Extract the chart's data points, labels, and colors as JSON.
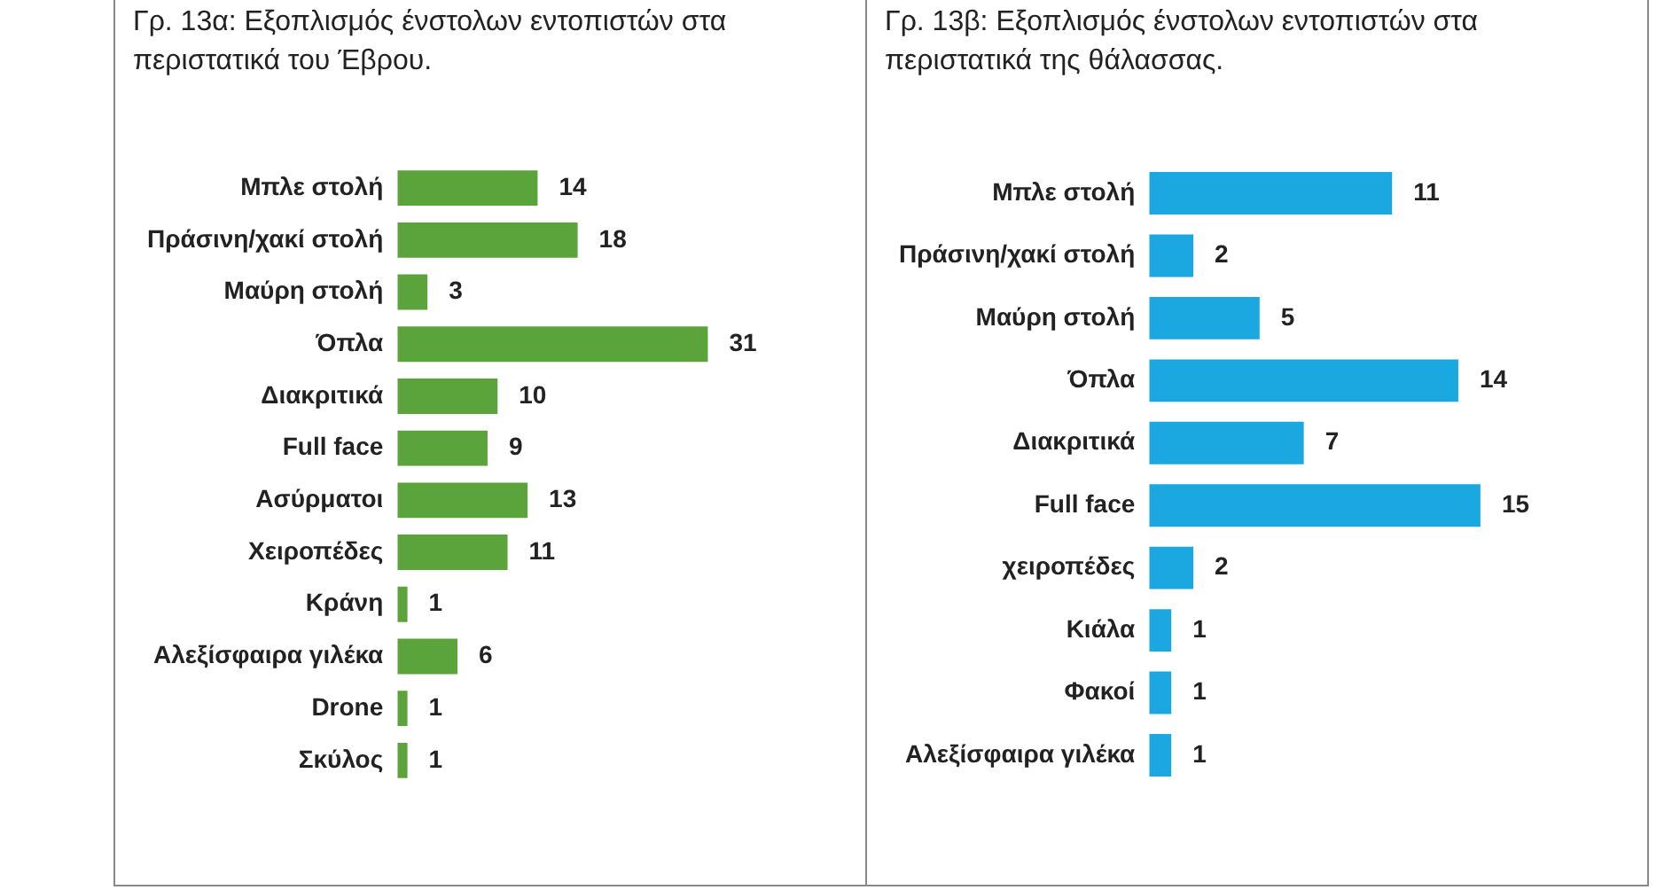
{
  "chart_data": [
    {
      "type": "bar",
      "orientation": "horizontal",
      "title": "Γρ. 13α: Εξοπλισμός ένστολων εντοπιστών στα περιστατικά του Έβρου.",
      "categories": [
        "Μπλε στολή",
        "Πράσινη/χακί στολή",
        "Μαύρη στολή",
        "Όπλα",
        "Διακριτικά",
        "Full face",
        "Ασύρματοι",
        "Χειροπέδες",
        "Κράνη",
        "Αλεξίσφαιρα γιλέκα",
        "Drone",
        "Σκύλος"
      ],
      "values": [
        14,
        18,
        3,
        31,
        10,
        9,
        13,
        11,
        1,
        6,
        1,
        1
      ],
      "color": "#5ba33b",
      "data_labels": true,
      "legend": false,
      "tick_labels": "y"
    },
    {
      "type": "bar",
      "orientation": "horizontal",
      "title": "Γρ. 13β: Εξοπλισμός ένστολων εντοπιστών στα περιστατικά της θάλασσας.",
      "categories": [
        "Μπλε στολή",
        "Πράσινη/χακί στολή",
        "Μαύρη στολή",
        "Όπλα",
        "Διακριτικά",
        "Full face",
        "χειροπέδες",
        "Κιάλα",
        "Φακοί",
        "Αλεξίσφαιρα γιλέκα"
      ],
      "values": [
        11,
        2,
        5,
        14,
        7,
        15,
        2,
        1,
        1,
        1
      ],
      "color": "#1ba8e1",
      "data_labels": true,
      "legend": false,
      "tick_labels": "y"
    }
  ]
}
